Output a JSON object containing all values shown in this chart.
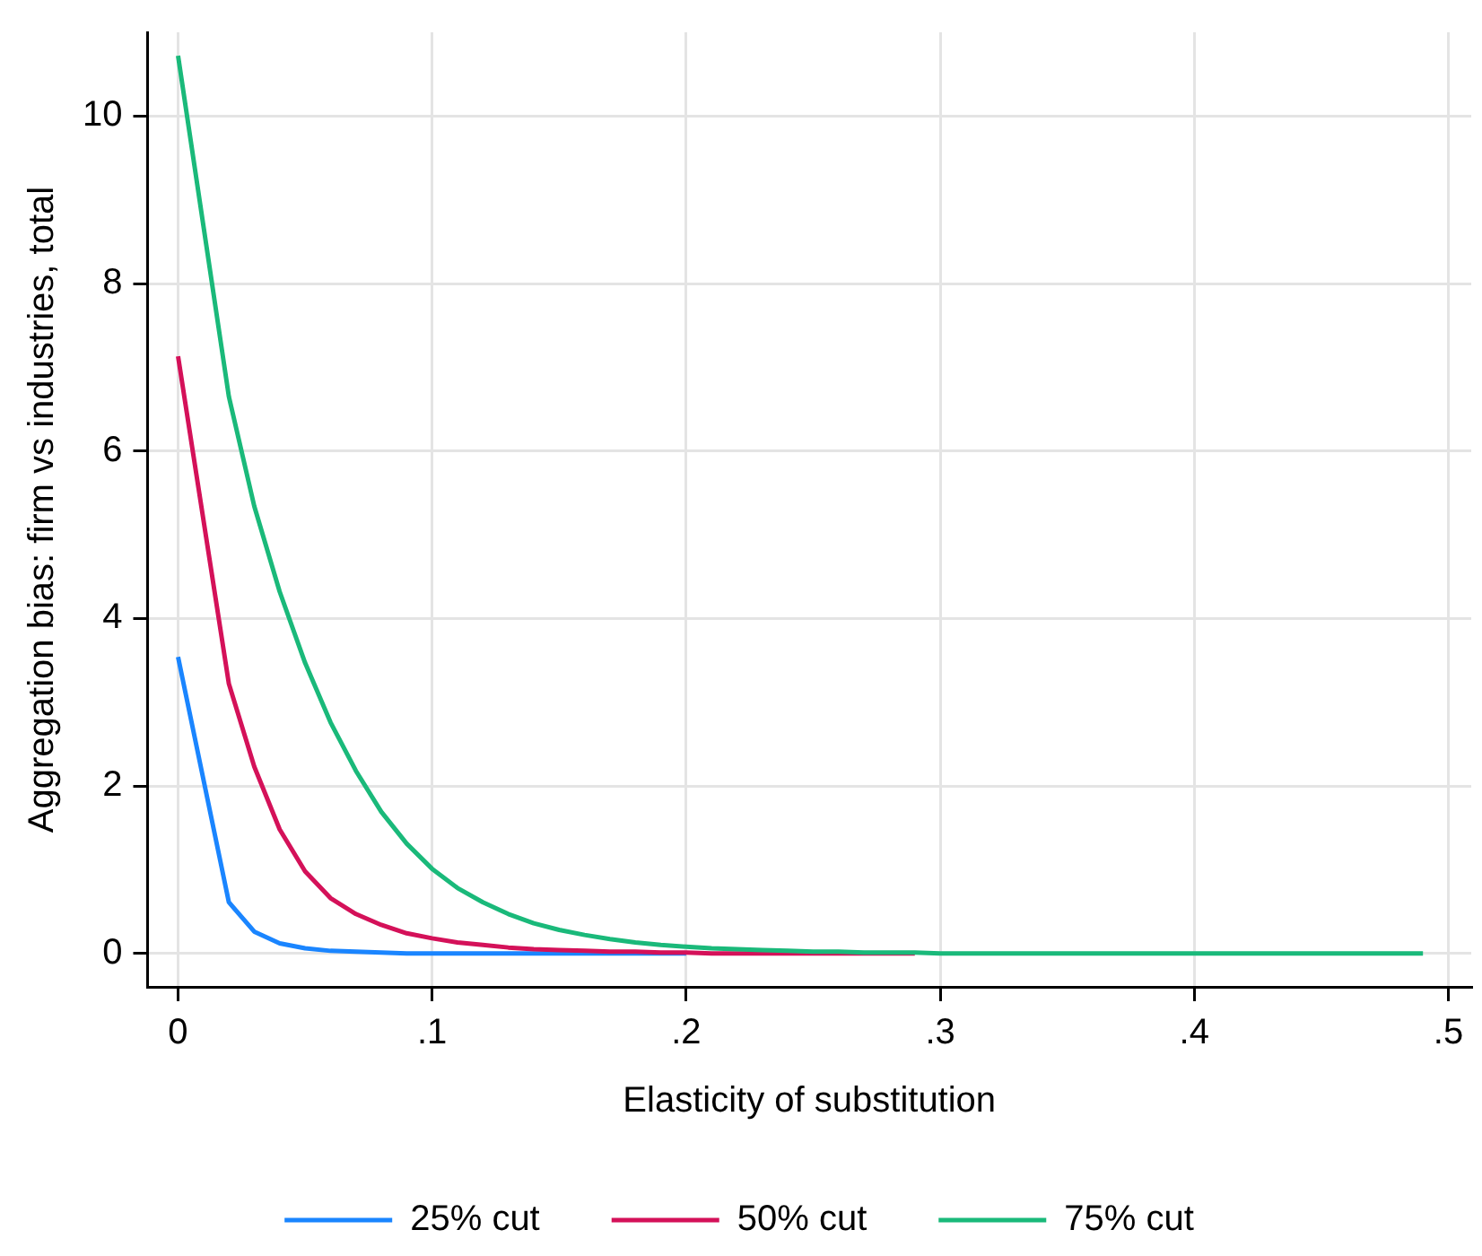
{
  "chart_data": {
    "type": "line",
    "xlabel": "Elasticity of substitution",
    "ylabel": "Aggregation bias: firm vs industries, total",
    "x": [
      0,
      0.02,
      0.03,
      0.04,
      0.05,
      0.06,
      0.07,
      0.08,
      0.09,
      0.1,
      0.11,
      0.12,
      0.13,
      0.14,
      0.15,
      0.16,
      0.17,
      0.18,
      0.19,
      0.2,
      0.21,
      0.22,
      0.23,
      0.24,
      0.25,
      0.26,
      0.27,
      0.28,
      0.29,
      0.3,
      0.31,
      0.32,
      0.33,
      0.34,
      0.35,
      0.36,
      0.37,
      0.38,
      0.39,
      0.4,
      0.41,
      0.42,
      0.43,
      0.44,
      0.45,
      0.46,
      0.47,
      0.48,
      0.49
    ],
    "series": [
      {
        "name": "25% cut",
        "color": "#1a85ff",
        "values": [
          3.54,
          0.61,
          0.26,
          0.12,
          0.06,
          0.03,
          0.02,
          0.01,
          0,
          0,
          0,
          0,
          0,
          0,
          0,
          0,
          0,
          0,
          0,
          0,
          null,
          null,
          null,
          null,
          null,
          null,
          null,
          null,
          null,
          null,
          null,
          null,
          null,
          null,
          null,
          null,
          null,
          null,
          null,
          null,
          null,
          null,
          null,
          null,
          null,
          null,
          null,
          null,
          null
        ]
      },
      {
        "name": "50% cut",
        "color": "#d41159",
        "values": [
          7.13,
          3.22,
          2.23,
          1.48,
          0.98,
          0.66,
          0.47,
          0.34,
          0.24,
          0.18,
          0.13,
          0.1,
          0.07,
          0.05,
          0.04,
          0.03,
          0.02,
          0.02,
          0.01,
          0.01,
          0,
          0,
          0,
          0,
          0,
          0,
          0,
          0,
          0,
          null,
          null,
          null,
          null,
          null,
          null,
          null,
          null,
          null,
          null,
          null,
          null,
          null,
          null,
          null,
          null,
          null,
          null,
          null,
          null
        ]
      },
      {
        "name": "75% cut",
        "color": "#1ab97a",
        "values": [
          10.72,
          6.65,
          5.34,
          4.32,
          3.47,
          2.76,
          2.18,
          1.69,
          1.31,
          1.01,
          0.78,
          0.61,
          0.47,
          0.36,
          0.28,
          0.22,
          0.17,
          0.13,
          0.1,
          0.08,
          0.06,
          0.05,
          0.04,
          0.03,
          0.02,
          0.02,
          0.01,
          0.01,
          0.01,
          0,
          0,
          0,
          0,
          0,
          0,
          0,
          0,
          0,
          0,
          0,
          0,
          0,
          0,
          0,
          0,
          0,
          0,
          0,
          0
        ]
      }
    ],
    "xlim": [
      -0.012,
      0.509
    ],
    "ylim": [
      -0.4,
      11
    ],
    "xticks": [
      {
        "value": 0,
        "label": "0"
      },
      {
        "value": 0.1,
        "label": ".1"
      },
      {
        "value": 0.2,
        "label": ".2"
      },
      {
        "value": 0.3,
        "label": ".3"
      },
      {
        "value": 0.4,
        "label": ".4"
      },
      {
        "value": 0.5,
        "label": ".5"
      }
    ],
    "yticks": [
      0,
      2,
      4,
      6,
      8,
      10
    ],
    "grid": true,
    "legend": "bottom",
    "marker": "none",
    "line_style": "solid"
  }
}
